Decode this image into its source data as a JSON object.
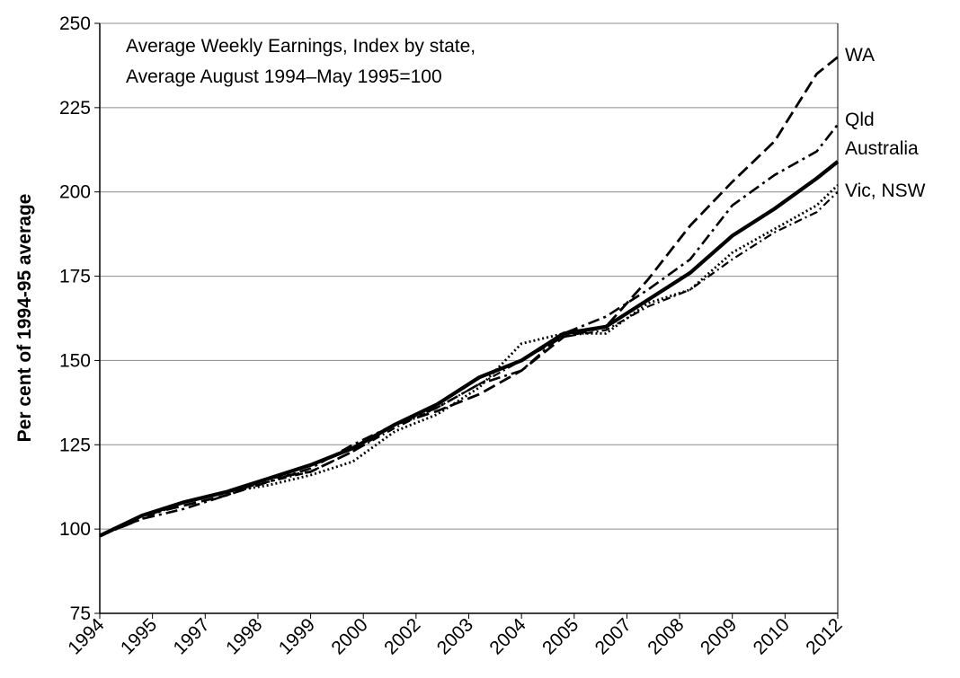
{
  "chart_data": {
    "type": "line",
    "title": [
      "Average Weekly Earnings, Index by state,",
      "Average August  1994–May 1995=100"
    ],
    "y_label": "Per cent of 1994-95 average",
    "x": [
      1994.6,
      1995.6,
      1996.6,
      1997.6,
      1998.6,
      1999.6,
      2000.6,
      2001.6,
      2002.6,
      2003.6,
      2004.6,
      2005.6,
      2006.6,
      2007.6,
      2008.6,
      2009.6,
      2010.6,
      2011.6,
      2012.1
    ],
    "xlim": [
      1994.6,
      2012.1
    ],
    "xticks": [
      {
        "value": 1994.6,
        "label": "1994"
      },
      {
        "value": 1995.85,
        "label": "1995"
      },
      {
        "value": 1997.1,
        "label": "1997"
      },
      {
        "value": 1998.35,
        "label": "1998"
      },
      {
        "value": 1999.6,
        "label": "1999"
      },
      {
        "value": 2000.85,
        "label": "2000"
      },
      {
        "value": 2002.1,
        "label": "2002"
      },
      {
        "value": 2003.35,
        "label": "2003"
      },
      {
        "value": 2004.6,
        "label": "2004"
      },
      {
        "value": 2005.85,
        "label": "2005"
      },
      {
        "value": 2007.1,
        "label": "2007"
      },
      {
        "value": 2008.35,
        "label": "2008"
      },
      {
        "value": 2009.6,
        "label": "2009"
      },
      {
        "value": 2010.85,
        "label": "2010"
      },
      {
        "value": 2012.1,
        "label": "2012"
      }
    ],
    "ylim": [
      75,
      250
    ],
    "yticks": [
      75,
      100,
      125,
      150,
      175,
      200,
      225,
      250
    ],
    "grid": true,
    "series": [
      {
        "color": "#000000",
        "style": "dashed",
        "values": [
          98,
          104,
          107,
          110,
          115,
          117,
          123,
          131,
          135,
          140,
          147,
          157,
          160,
          174,
          190,
          203,
          215,
          235,
          240
        ]
      },
      {
        "color": "#000000",
        "style": "dashdot",
        "values": [
          98,
          103,
          106,
          110,
          114,
          118,
          125,
          131,
          136,
          143,
          147,
          158,
          163,
          171,
          180,
          196,
          205,
          212,
          220
        ]
      },
      {
        "color": "#000000",
        "style": "solid",
        "values": [
          98,
          104,
          108,
          111,
          115,
          119,
          124,
          131,
          137,
          145,
          150,
          158,
          160,
          168,
          176,
          187,
          195,
          204,
          209
        ]
      },
      {
        "color": "#000000",
        "style": "dotted",
        "values": [
          98,
          104,
          108,
          111,
          113,
          116,
          120,
          129,
          134,
          142,
          155,
          158,
          158,
          167,
          171,
          182,
          189,
          196,
          202
        ]
      },
      {
        "color": "#000000",
        "style": "longdash",
        "values": [
          98,
          103,
          108,
          111,
          114,
          117,
          123,
          130,
          136,
          143,
          150,
          157,
          159,
          166,
          171,
          180,
          188,
          194,
          200
        ]
      }
    ],
    "annotations": [
      "WA",
      "Qld",
      "Australia",
      "Vic, NSW"
    ]
  }
}
